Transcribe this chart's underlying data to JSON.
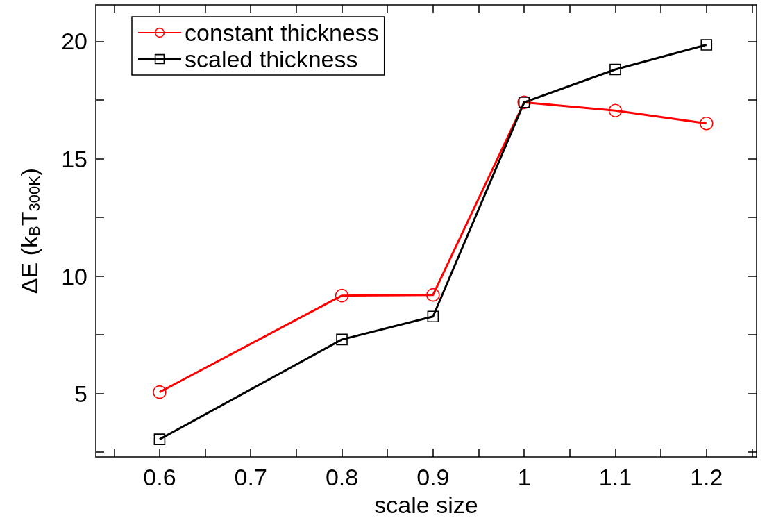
{
  "chart_data": {
    "type": "line",
    "xlabel": "scale size",
    "ylabel": "ΔE (k$_{B}$T$_{300K}$)",
    "x": [
      0.6,
      0.8,
      0.9,
      1,
      1.1,
      1.2
    ],
    "series": [
      {
        "name": "constant thickness",
        "color": "#ff0000",
        "marker": "circle",
        "values": [
          5.06,
          9.17,
          9.2,
          17.4,
          17.05,
          16.5
        ]
      },
      {
        "name": "scaled thickness",
        "color": "#000000",
        "marker": "square",
        "values": [
          3.05,
          7.3,
          8.28,
          17.4,
          18.8,
          19.85
        ]
      }
    ],
    "xlim": [
      0.53,
      1.255
    ],
    "ylim": [
      2.3,
      21.55
    ],
    "xticks": [
      {
        "value": 0.55,
        "label": null
      },
      0.6,
      {
        "value": 0.65,
        "label": null
      },
      0.7,
      {
        "value": 0.75,
        "label": null
      },
      0.8,
      {
        "value": 0.85,
        "label": null
      },
      0.9,
      {
        "value": 0.95,
        "label": null
      },
      1,
      {
        "value": 1.05,
        "label": null
      },
      1.1,
      {
        "value": 1.15,
        "label": null
      },
      1.2,
      {
        "value": 1.25,
        "label": null
      }
    ],
    "yticks": [
      {
        "value": 2.5,
        "label": null
      },
      5,
      {
        "value": 7.5,
        "label": null
      },
      10,
      {
        "value": 12.5,
        "label": null
      },
      15,
      {
        "value": 17.5,
        "label": null
      },
      20
    ],
    "grid": false,
    "legend": "top left",
    "line_style": "solid"
  }
}
